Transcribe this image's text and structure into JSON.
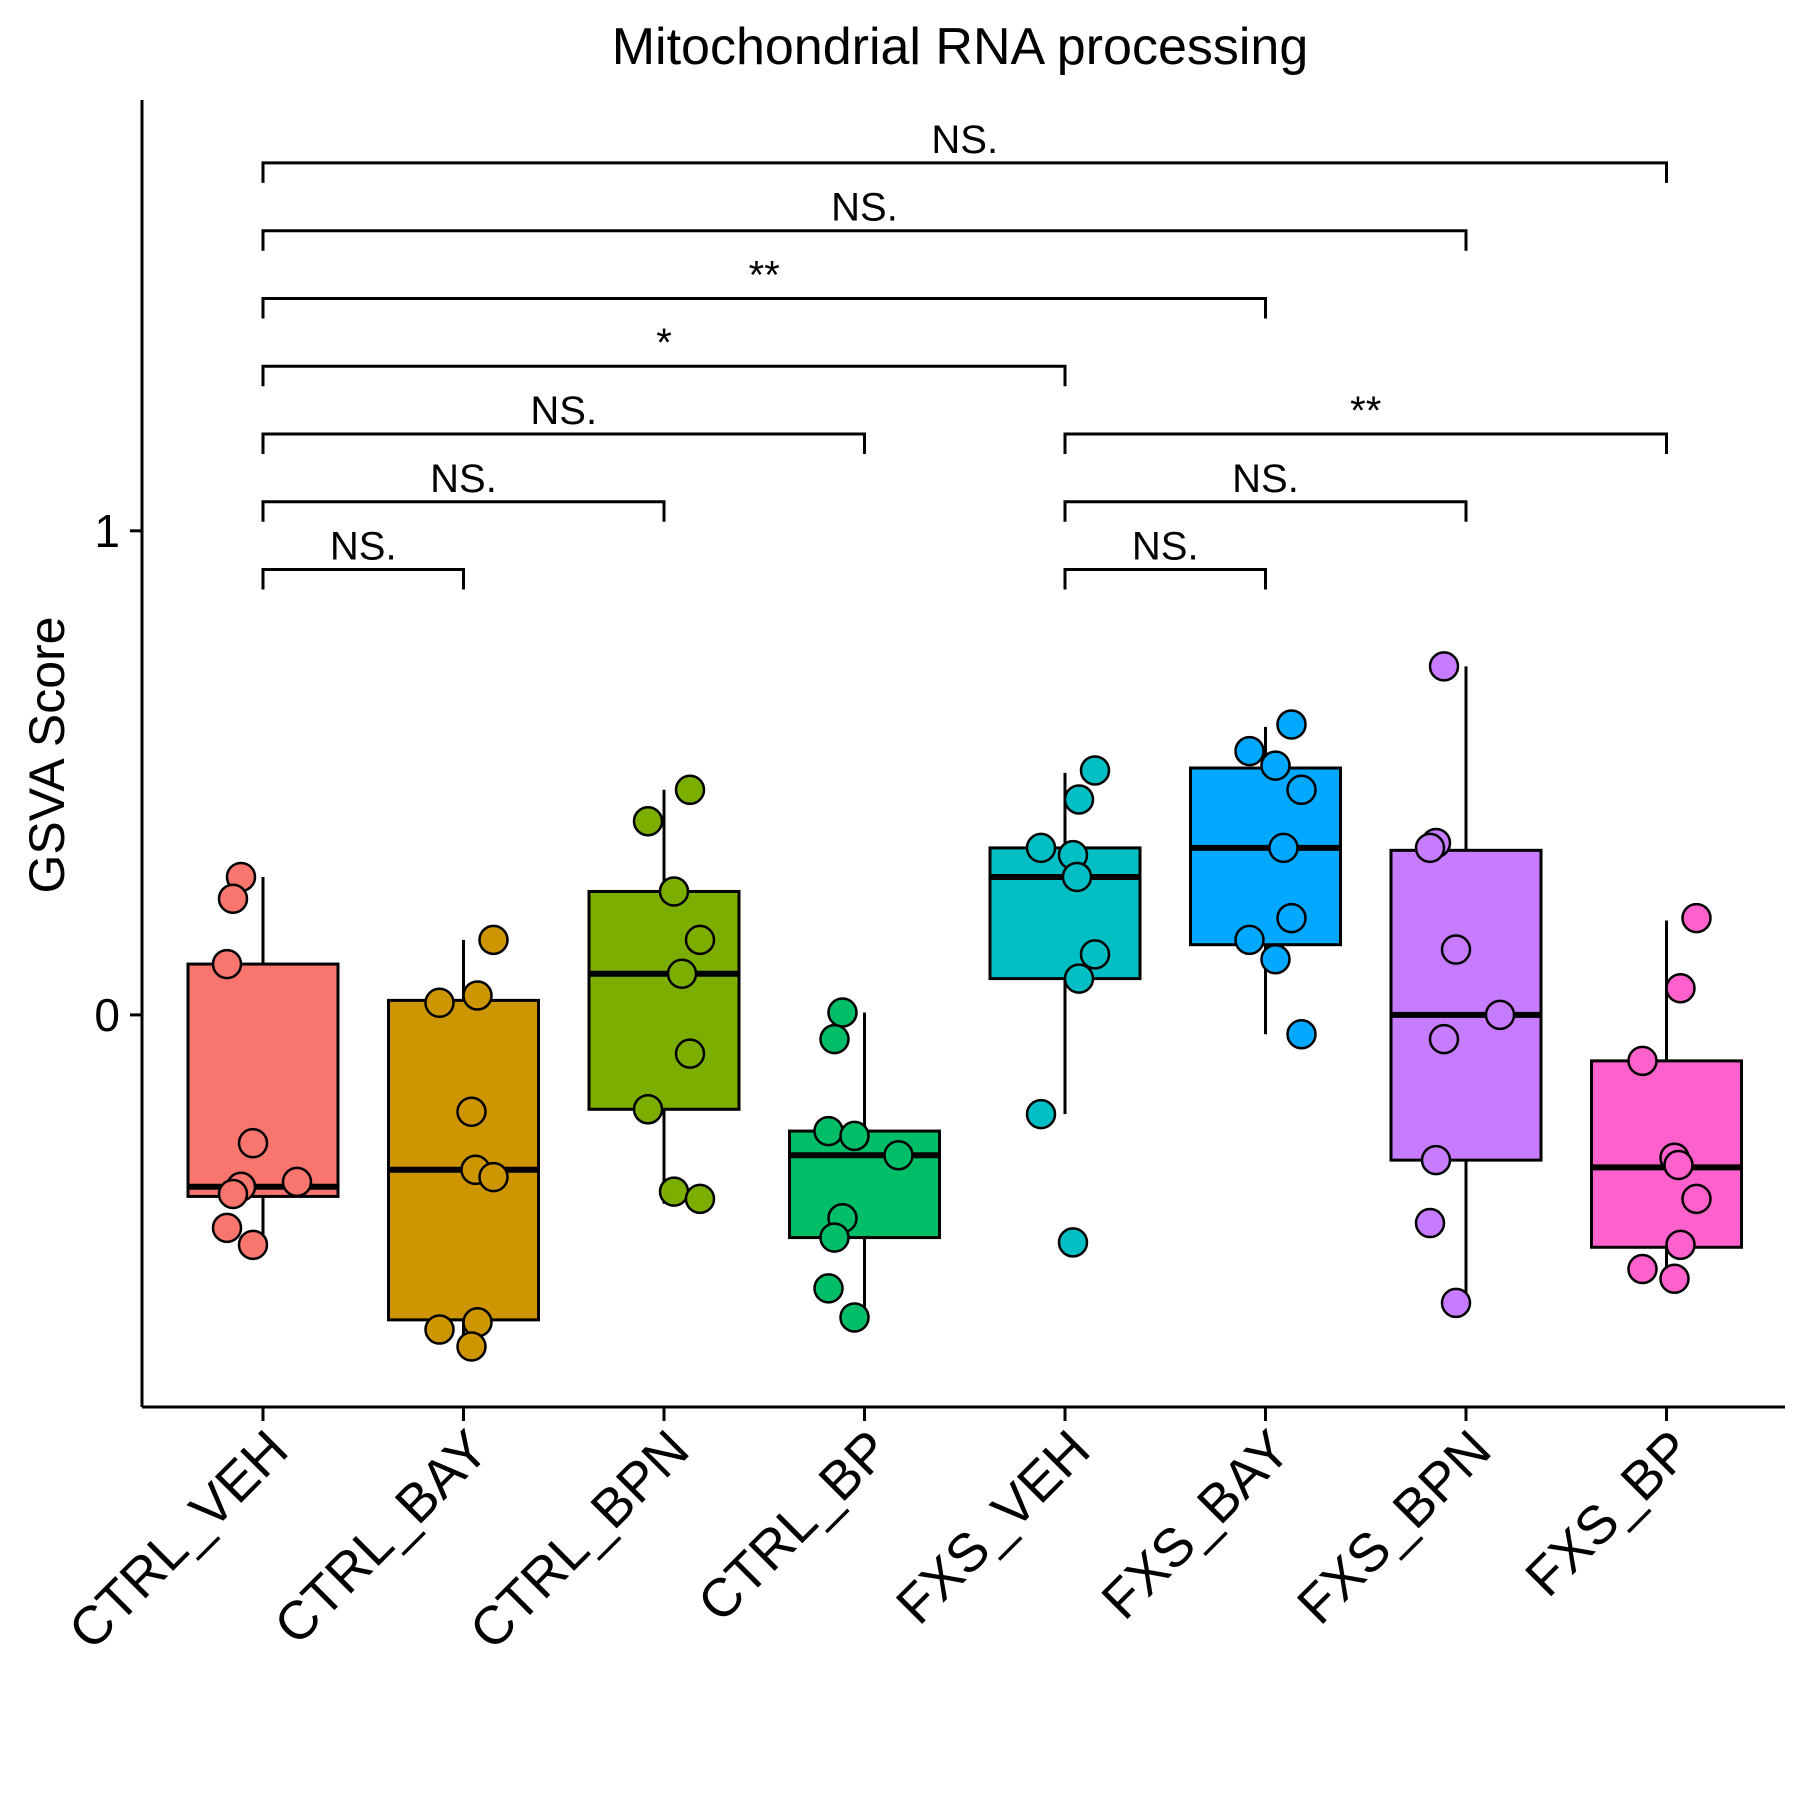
{
  "chart_data": {
    "type": "box",
    "title": "Mitochondrial RNA processing",
    "xlabel": "",
    "ylabel": "GSVA Score",
    "ylim": [
      -0.81,
      1.89
    ],
    "yticks": [
      0,
      1
    ],
    "yticklabels": [
      "0",
      "1"
    ],
    "grid": false,
    "legend": "none",
    "categories": [
      "CTRL_VEH",
      "CTRL_BAY",
      "CTRL_BPN",
      "CTRL_BP",
      "FXS_VEH",
      "FXS_BAY",
      "FXS_BPN",
      "FXS_BP"
    ],
    "colors": [
      "#F8766D",
      "#CD9600",
      "#7CAE00",
      "#00BE67",
      "#00BFC4",
      "#00A9FF",
      "#C77CFF",
      "#FF61CC"
    ],
    "boxes": [
      {
        "whisker_low": -0.475,
        "q1": -0.375,
        "median": -0.355,
        "q3": 0.105,
        "whisker_high": 0.285
      },
      {
        "whisker_low": -0.685,
        "q1": -0.63,
        "median": -0.32,
        "q3": 0.03,
        "whisker_high": 0.155
      },
      {
        "whisker_low": -0.39,
        "q1": -0.195,
        "median": 0.085,
        "q3": 0.255,
        "whisker_high": 0.465
      },
      {
        "whisker_low": -0.625,
        "q1": -0.46,
        "median": -0.29,
        "q3": -0.24,
        "whisker_high": 0.005
      },
      {
        "whisker_low": -0.205,
        "q1": 0.075,
        "median": 0.285,
        "q3": 0.345,
        "whisker_high": 0.5
      },
      {
        "whisker_low": -0.04,
        "q1": 0.145,
        "median": 0.345,
        "q3": 0.51,
        "whisker_high": 0.595
      },
      {
        "whisker_low": -0.595,
        "q1": -0.3,
        "median": 0.0,
        "q3": 0.34,
        "whisker_high": 0.72
      },
      {
        "whisker_low": -0.545,
        "q1": -0.48,
        "median": -0.315,
        "q3": -0.095,
        "whisker_high": 0.195
      }
    ],
    "points": [
      [
        0.285,
        0.24,
        0.105,
        -0.265,
        -0.345,
        -0.355,
        -0.37,
        -0.44,
        -0.475
      ],
      [
        0.155,
        0.04,
        0.025,
        -0.2,
        -0.32,
        -0.335,
        -0.635,
        -0.65,
        -0.685
      ],
      [
        0.465,
        0.4,
        0.255,
        0.155,
        0.085,
        -0.08,
        -0.195,
        -0.365,
        -0.38
      ],
      [
        0.005,
        -0.05,
        -0.24,
        -0.25,
        -0.29,
        -0.42,
        -0.46,
        -0.565,
        -0.625
      ],
      [
        0.505,
        0.445,
        0.345,
        0.33,
        0.285,
        0.125,
        0.075,
        -0.205,
        -0.47
      ],
      [
        0.6,
        0.545,
        0.515,
        0.465,
        0.345,
        0.2,
        0.155,
        0.115,
        -0.04
      ],
      [
        0.72,
        0.355,
        0.345,
        0.135,
        0.0,
        -0.05,
        -0.3,
        -0.43,
        -0.595
      ],
      [
        0.2,
        0.055,
        -0.095,
        -0.295,
        -0.31,
        -0.38,
        -0.475,
        -0.525,
        -0.545
      ]
    ],
    "comparisons": [
      {
        "group1": "CTRL_VEH",
        "group2": "CTRL_BAY",
        "label": "NS.",
        "y": 0.92
      },
      {
        "group1": "CTRL_VEH",
        "group2": "CTRL_BPN",
        "label": "NS.",
        "y": 1.06
      },
      {
        "group1": "CTRL_VEH",
        "group2": "CTRL_BP",
        "label": "NS.",
        "y": 1.2
      },
      {
        "group1": "CTRL_VEH",
        "group2": "FXS_VEH",
        "label": "*",
        "y": 1.34
      },
      {
        "group1": "CTRL_VEH",
        "group2": "FXS_BAY",
        "label": "**",
        "y": 1.48
      },
      {
        "group1": "CTRL_VEH",
        "group2": "FXS_BPN",
        "label": "NS.",
        "y": 1.62
      },
      {
        "group1": "CTRL_VEH",
        "group2": "FXS_BP",
        "label": "NS.",
        "y": 1.76
      },
      {
        "group1": "FXS_VEH",
        "group2": "FXS_BAY",
        "label": "NS.",
        "y": 0.92
      },
      {
        "group1": "FXS_VEH",
        "group2": "FXS_BPN",
        "label": "NS.",
        "y": 1.06
      },
      {
        "group1": "FXS_VEH",
        "group2": "FXS_BP",
        "label": "**",
        "y": 1.2
      }
    ]
  }
}
